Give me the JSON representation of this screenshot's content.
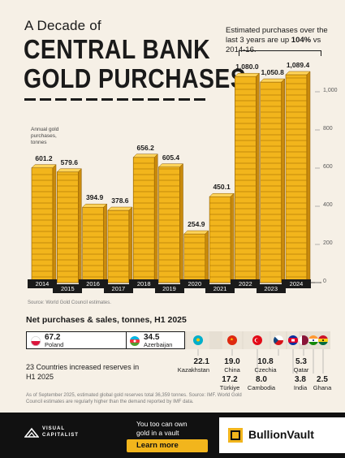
{
  "header": {
    "title_small": "A Decade of",
    "title_line1": "CENTRAL BANK",
    "title_line2": "GOLD PURCHASES",
    "note_prefix": "Estimated purchases over the last 3 years are up ",
    "note_bold": "104%",
    "note_suffix": " vs 2014-16."
  },
  "chart_data": {
    "type": "bar",
    "categories": [
      "2014",
      "2015",
      "2016",
      "2017",
      "2018",
      "2019",
      "2020",
      "2021",
      "2022",
      "2023",
      "2024"
    ],
    "values": [
      601.2,
      579.6,
      394.9,
      378.6,
      656.2,
      605.4,
      254.9,
      450.1,
      1080.0,
      1050.8,
      1089.4
    ],
    "value_labels": [
      "601.2",
      "579.6",
      "394.9",
      "378.6",
      "656.2",
      "605.4",
      "254.9",
      "450.1",
      "1,080.0",
      "1,050.8",
      "1,089.4"
    ],
    "ylabel": "Annual gold purchases, tonnes",
    "ylim": [
      0,
      1200
    ],
    "y_ticks": [
      "0",
      "200",
      "400",
      "600",
      "800",
      "1,000"
    ],
    "y_tick_values": [
      0,
      200,
      400,
      600,
      800,
      1000
    ],
    "grid": false,
    "bar_color": "#f2b51c"
  },
  "source": "Source: World Gold Council estimates.",
  "h1": {
    "title": "Net purchases & sales, tonnes, H1 2025",
    "summary": "23 Countries increased reserves in H1 2025",
    "countries": [
      {
        "name": "Poland",
        "value": "67.2",
        "flag": "poland-flag"
      },
      {
        "name": "Azerbaijan",
        "value": "34.5",
        "flag": "azerbaijan-flag"
      },
      {
        "name": "Kazakhstan",
        "value": "22.1",
        "flag": "kazakhstan-flag"
      },
      {
        "name": "China",
        "value": "19.0",
        "flag": "china-flag"
      },
      {
        "name": "Türkiye",
        "value": "17.2",
        "flag": "turkiye-flag"
      },
      {
        "name": "Czechia",
        "value": "10.8",
        "flag": "czechia-flag"
      },
      {
        "name": "Cambodia",
        "value": "8.0",
        "flag": "cambodia-flag"
      },
      {
        "name": "Qatar",
        "value": "5.3",
        "flag": "qatar-flag"
      },
      {
        "name": "India",
        "value": "3.8",
        "flag": "india-flag"
      },
      {
        "name": "Ghana",
        "value": "2.5",
        "flag": "ghana-flag"
      }
    ]
  },
  "footnote": "As of September 2025, estimated global gold reserves total 36,359 tonnes. Source: IMF. World Gold Council estimates are regularly higher than the demand reported by IMF data.",
  "footer": {
    "brand_line1": "VISUAL",
    "brand_line2": "CAPITALIST",
    "promo_line1": "You too can own",
    "promo_line2": "gold in a vault",
    "cta": "Learn more",
    "partner": "BullionVault",
    "accent": "#f2b51c"
  }
}
